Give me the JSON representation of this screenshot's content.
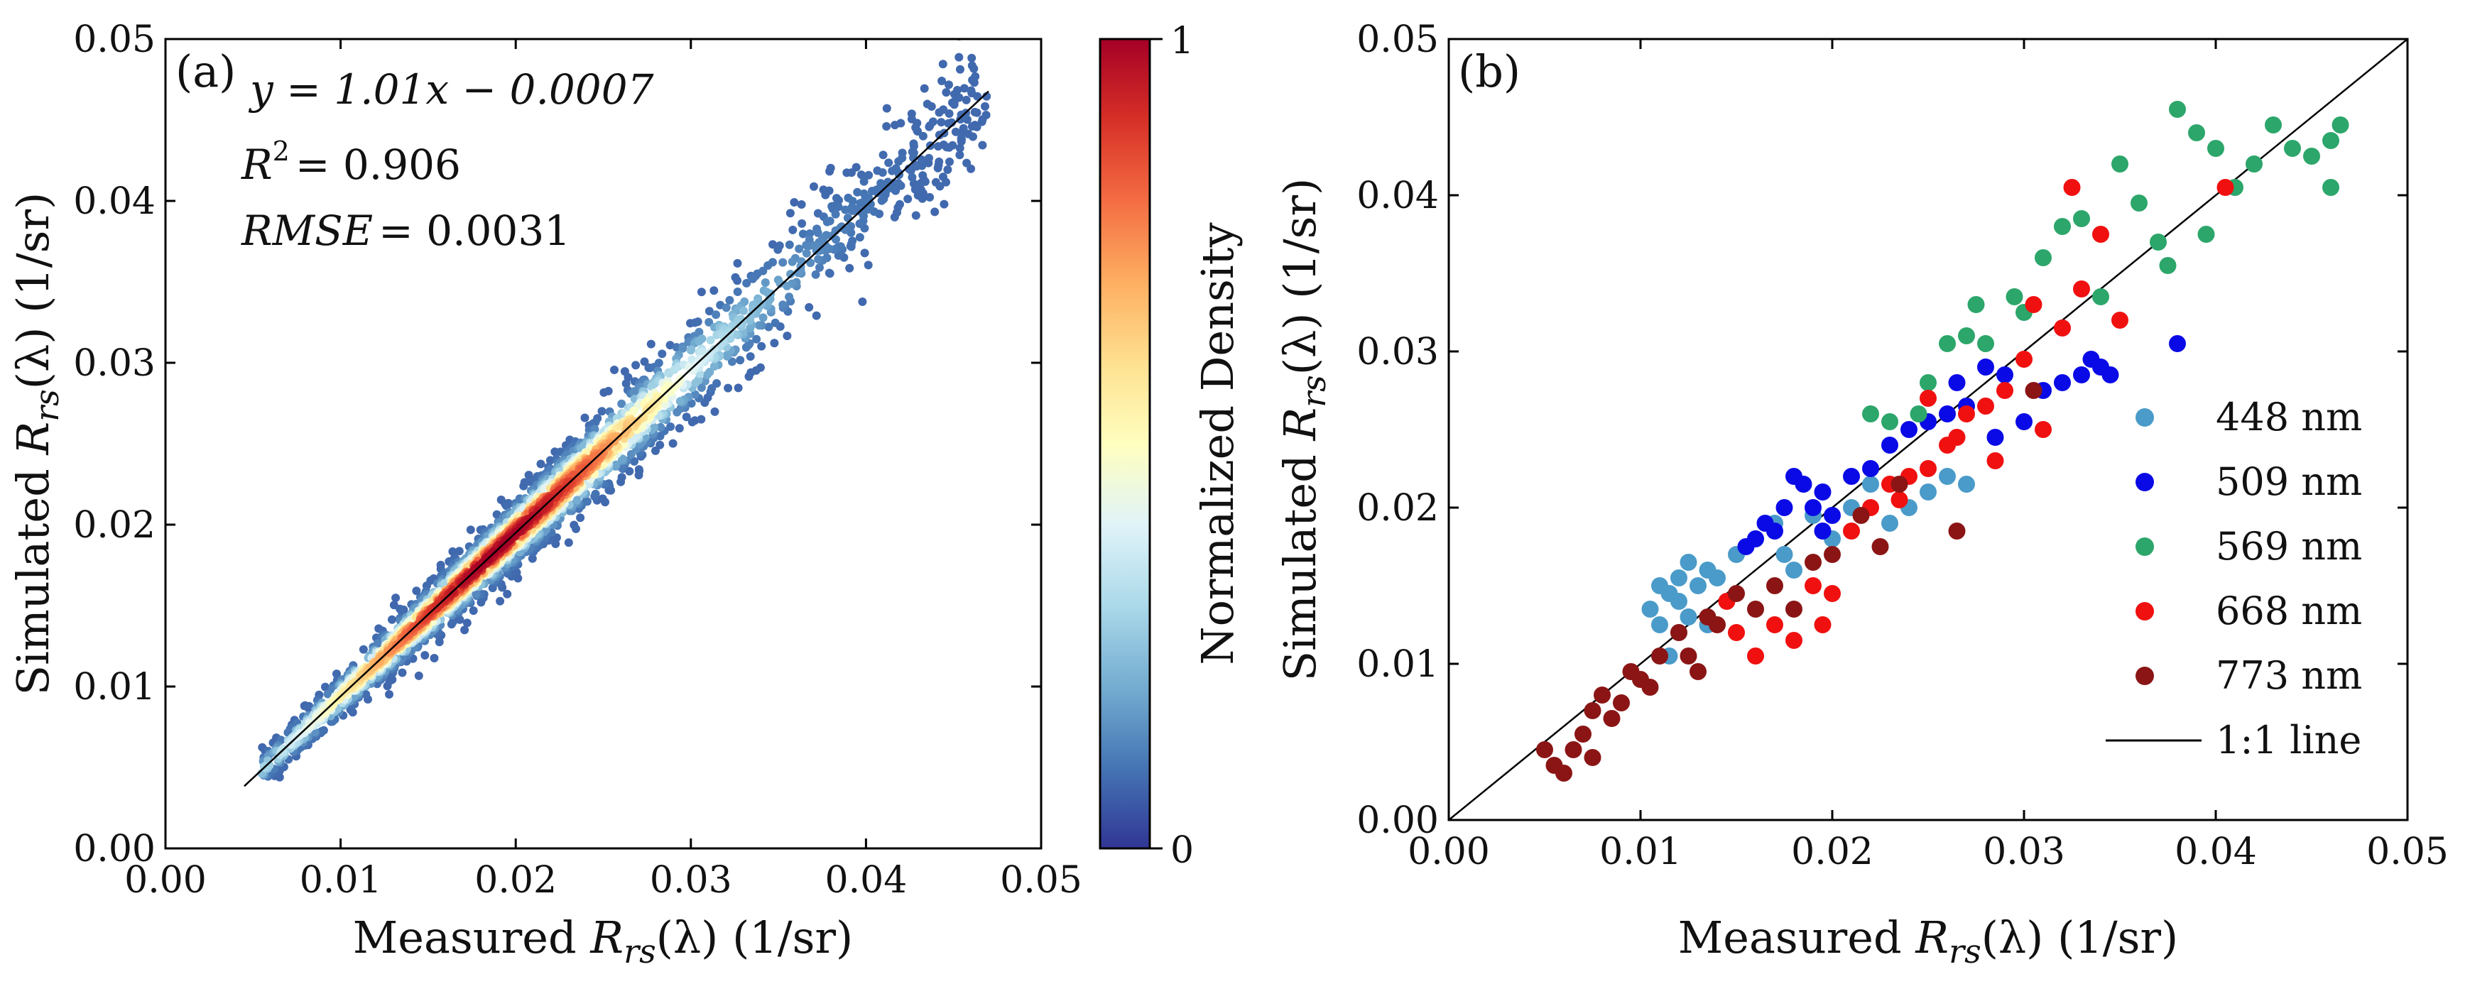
{
  "chart_data": [
    {
      "panel": "(a)",
      "type": "scatter",
      "subtype": "density-scatter",
      "xlabel_prefix": "Measured ",
      "ylabel_prefix": "Simulated ",
      "label_symbol": "R",
      "label_subscript": "rs",
      "label_suffix": "(λ) (1/sr)",
      "xlim": [
        0.0,
        0.05
      ],
      "ylim": [
        0.0,
        0.05
      ],
      "xticks": [
        "0.00",
        "0.01",
        "0.02",
        "0.03",
        "0.04",
        "0.05"
      ],
      "yticks": [
        "0.00",
        "0.01",
        "0.02",
        "0.03",
        "0.04",
        "0.05"
      ],
      "tick_values": [
        0.0,
        0.01,
        0.02,
        0.03,
        0.04,
        0.05
      ],
      "regression": {
        "equation": "y = 1.01x − 0.0007",
        "slope": 1.01,
        "intercept": -0.0007,
        "x_range": [
          0.0045,
          0.047
        ]
      },
      "stats": {
        "r2_label": "R",
        "r2_sup": "2",
        "r2_value": "= 0.906",
        "rmse_label": "RMSE",
        "rmse_value": "= 0.0031"
      },
      "colorbar": {
        "label": "Normalized Density",
        "min_label": "0",
        "max_label": "1",
        "colormap": "RdYlBu_r",
        "stops": [
          "#313695",
          "#4575b4",
          "#74add1",
          "#abd9e9",
          "#e0f3f8",
          "#ffffbf",
          "#fee090",
          "#fdae61",
          "#f46d43",
          "#d73027",
          "#a50026"
        ]
      },
      "density_model": {
        "centerline_slope": 1.01,
        "centerline_intercept": -0.0007,
        "peak_x": 0.019,
        "x_range": [
          0.0055,
          0.047
        ],
        "n_points": 2600
      }
    },
    {
      "panel": "(b)",
      "type": "scatter",
      "xlim": [
        0.0,
        0.05
      ],
      "ylim": [
        0.0,
        0.05
      ],
      "xticks": [
        "0.00",
        "0.01",
        "0.02",
        "0.03",
        "0.04",
        "0.05"
      ],
      "yticks": [
        "0.00",
        "0.01",
        "0.02",
        "0.03",
        "0.04",
        "0.05"
      ],
      "tick_values": [
        0.0,
        0.01,
        0.02,
        0.03,
        0.04,
        0.05
      ],
      "reference_line": {
        "label": "1:1 line",
        "from": [
          0.0,
          0.0
        ],
        "to": [
          0.05,
          0.05
        ]
      },
      "legend_position": "lower-right",
      "series": [
        {
          "name": "448 nm",
          "color": "#4a9bc9",
          "points": [
            [
              0.0105,
              0.0135
            ],
            [
              0.011,
              0.0125
            ],
            [
              0.0115,
              0.0145
            ],
            [
              0.012,
              0.0155
            ],
            [
              0.0125,
              0.013
            ],
            [
              0.0125,
              0.0165
            ],
            [
              0.013,
              0.015
            ],
            [
              0.0135,
              0.016
            ],
            [
              0.014,
              0.0155
            ],
            [
              0.011,
              0.015
            ],
            [
              0.012,
              0.014
            ],
            [
              0.015,
              0.017
            ],
            [
              0.016,
              0.018
            ],
            [
              0.017,
              0.019
            ],
            [
              0.0175,
              0.017
            ],
            [
              0.018,
              0.016
            ],
            [
              0.019,
              0.0195
            ],
            [
              0.02,
              0.018
            ],
            [
              0.021,
              0.02
            ],
            [
              0.022,
              0.0215
            ],
            [
              0.023,
              0.019
            ],
            [
              0.024,
              0.02
            ],
            [
              0.025,
              0.021
            ],
            [
              0.026,
              0.022
            ],
            [
              0.027,
              0.0215
            ],
            [
              0.0115,
              0.0105
            ],
            [
              0.012,
              0.012
            ],
            [
              0.0135,
              0.0125
            ]
          ]
        },
        {
          "name": "509 nm",
          "color": "#0a0ae6",
          "points": [
            [
              0.0155,
              0.0175
            ],
            [
              0.016,
              0.018
            ],
            [
              0.017,
              0.0185
            ],
            [
              0.0175,
              0.02
            ],
            [
              0.018,
              0.022
            ],
            [
              0.0185,
              0.0215
            ],
            [
              0.019,
              0.02
            ],
            [
              0.0195,
              0.021
            ],
            [
              0.02,
              0.0195
            ],
            [
              0.021,
              0.022
            ],
            [
              0.022,
              0.0225
            ],
            [
              0.023,
              0.024
            ],
            [
              0.024,
              0.025
            ],
            [
              0.025,
              0.0255
            ],
            [
              0.026,
              0.026
            ],
            [
              0.027,
              0.0265
            ],
            [
              0.028,
              0.029
            ],
            [
              0.029,
              0.0285
            ],
            [
              0.03,
              0.0255
            ],
            [
              0.031,
              0.0275
            ],
            [
              0.032,
              0.028
            ],
            [
              0.033,
              0.0285
            ],
            [
              0.034,
              0.029
            ],
            [
              0.0345,
              0.0285
            ],
            [
              0.0335,
              0.0295
            ],
            [
              0.038,
              0.0305
            ],
            [
              0.0285,
              0.0245
            ],
            [
              0.0165,
              0.019
            ],
            [
              0.0195,
              0.0185
            ],
            [
              0.0265,
              0.028
            ]
          ]
        },
        {
          "name": "569 nm",
          "color": "#2ca66a",
          "points": [
            [
              0.022,
              0.026
            ],
            [
              0.023,
              0.0255
            ],
            [
              0.0245,
              0.026
            ],
            [
              0.025,
              0.028
            ],
            [
              0.026,
              0.0305
            ],
            [
              0.027,
              0.031
            ],
            [
              0.0275,
              0.033
            ],
            [
              0.028,
              0.0305
            ],
            [
              0.0295,
              0.0335
            ],
            [
              0.03,
              0.0325
            ],
            [
              0.031,
              0.036
            ],
            [
              0.032,
              0.038
            ],
            [
              0.033,
              0.0385
            ],
            [
              0.034,
              0.0335
            ],
            [
              0.035,
              0.042
            ],
            [
              0.036,
              0.0395
            ],
            [
              0.037,
              0.037
            ],
            [
              0.0375,
              0.0355
            ],
            [
              0.038,
              0.0455
            ],
            [
              0.039,
              0.044
            ],
            [
              0.04,
              0.043
            ],
            [
              0.041,
              0.0405
            ],
            [
              0.042,
              0.042
            ],
            [
              0.043,
              0.0445
            ],
            [
              0.044,
              0.043
            ],
            [
              0.045,
              0.0425
            ],
            [
              0.046,
              0.0405
            ],
            [
              0.046,
              0.0435
            ],
            [
              0.0465,
              0.0445
            ],
            [
              0.0395,
              0.0375
            ]
          ]
        },
        {
          "name": "668 nm",
          "color": "#f01010",
          "points": [
            [
              0.0145,
              0.014
            ],
            [
              0.015,
              0.012
            ],
            [
              0.016,
              0.0105
            ],
            [
              0.017,
              0.0125
            ],
            [
              0.018,
              0.0115
            ],
            [
              0.019,
              0.015
            ],
            [
              0.02,
              0.0145
            ],
            [
              0.021,
              0.0185
            ],
            [
              0.022,
              0.02
            ],
            [
              0.023,
              0.0215
            ],
            [
              0.0235,
              0.0205
            ],
            [
              0.024,
              0.022
            ],
            [
              0.025,
              0.0225
            ],
            [
              0.026,
              0.024
            ],
            [
              0.027,
              0.026
            ],
            [
              0.028,
              0.0265
            ],
            [
              0.029,
              0.0275
            ],
            [
              0.03,
              0.0295
            ],
            [
              0.0305,
              0.033
            ],
            [
              0.031,
              0.025
            ],
            [
              0.032,
              0.0315
            ],
            [
              0.033,
              0.034
            ],
            [
              0.034,
              0.0375
            ],
            [
              0.035,
              0.032
            ],
            [
              0.0325,
              0.0405
            ],
            [
              0.0405,
              0.0405
            ],
            [
              0.0285,
              0.023
            ],
            [
              0.025,
              0.027
            ],
            [
              0.0195,
              0.0125
            ],
            [
              0.0265,
              0.0245
            ]
          ]
        },
        {
          "name": "773 nm",
          "color": "#8b1515",
          "points": [
            [
              0.005,
              0.0045
            ],
            [
              0.0055,
              0.0035
            ],
            [
              0.006,
              0.003
            ],
            [
              0.0065,
              0.0045
            ],
            [
              0.007,
              0.0055
            ],
            [
              0.0075,
              0.007
            ],
            [
              0.008,
              0.008
            ],
            [
              0.0085,
              0.0065
            ],
            [
              0.009,
              0.0075
            ],
            [
              0.0095,
              0.0095
            ],
            [
              0.01,
              0.009
            ],
            [
              0.0105,
              0.0085
            ],
            [
              0.011,
              0.0105
            ],
            [
              0.012,
              0.012
            ],
            [
              0.0125,
              0.0105
            ],
            [
              0.013,
              0.0095
            ],
            [
              0.0135,
              0.013
            ],
            [
              0.014,
              0.0125
            ],
            [
              0.015,
              0.0145
            ],
            [
              0.016,
              0.0135
            ],
            [
              0.017,
              0.015
            ],
            [
              0.018,
              0.0135
            ],
            [
              0.019,
              0.0165
            ],
            [
              0.02,
              0.017
            ],
            [
              0.0215,
              0.0195
            ],
            [
              0.0225,
              0.0175
            ],
            [
              0.0235,
              0.0215
            ],
            [
              0.0265,
              0.0185
            ],
            [
              0.0305,
              0.0275
            ],
            [
              0.0075,
              0.004
            ]
          ]
        }
      ]
    }
  ]
}
